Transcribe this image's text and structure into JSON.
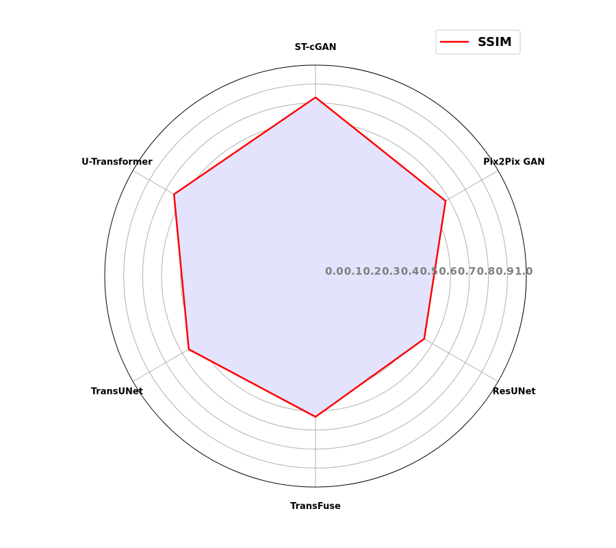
{
  "chart_data": {
    "type": "radar",
    "title": "",
    "categories": [
      "ST-cGAN",
      "Pix2Pix GAN",
      "ResUNet",
      "TransFuse",
      "TransUNet",
      "U-Transformer"
    ],
    "series": [
      {
        "name": "SSIM",
        "values": [
          0.83,
          0.68,
          0.55,
          0.63,
          0.66,
          0.75
        ]
      }
    ],
    "rlim": [
      0,
      1.0
    ],
    "rticks": [
      "0.0",
      "0.1",
      "0.2",
      "0.3",
      "0.4",
      "0.5",
      "0.6",
      "0.7",
      "0.8",
      "0.9",
      "1.0"
    ],
    "grid": true,
    "legend": {
      "position": "top-right",
      "label": "SSIM"
    },
    "colors": {
      "line": "#ff0000",
      "fill": "#e3e3fd",
      "grid": "#b0b0b0",
      "frame": "#000000",
      "tick": "#808080"
    }
  }
}
